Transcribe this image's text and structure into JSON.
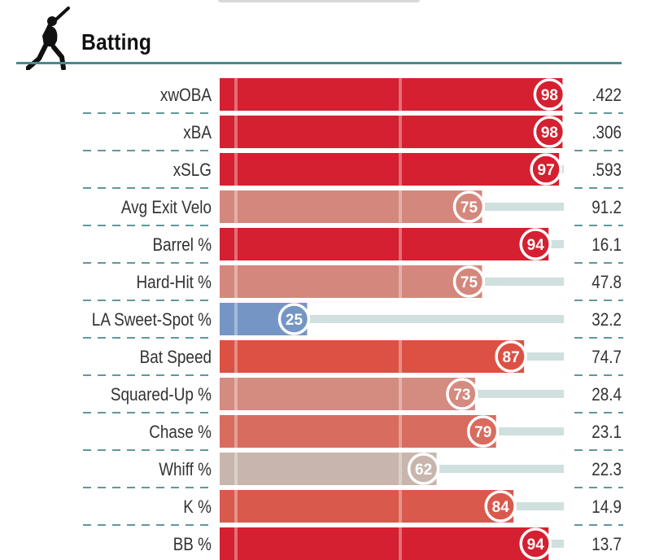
{
  "section": {
    "title": "Batting",
    "icon": "batter-silhouette-icon"
  },
  "chart_data": {
    "type": "bar",
    "orientation": "horizontal",
    "title": "Batting",
    "xlim": [
      0,
      100
    ],
    "rows": [
      {
        "metric": "xwOBA",
        "percentile": 98,
        "value": ".422",
        "color": "#d42030"
      },
      {
        "metric": "xBA",
        "percentile": 98,
        "value": ".306",
        "color": "#d42030"
      },
      {
        "metric": "xSLG",
        "percentile": 97,
        "value": ".593",
        "color": "#d42030"
      },
      {
        "metric": "Avg Exit Velo",
        "percentile": 75,
        "value": "91.2",
        "color": "#d4877c"
      },
      {
        "metric": "Barrel %",
        "percentile": 94,
        "value": "16.1",
        "color": "#d42030"
      },
      {
        "metric": "Hard-Hit %",
        "percentile": 75,
        "value": "47.8",
        "color": "#d4877c"
      },
      {
        "metric": "LA Sweet-Spot %",
        "percentile": 25,
        "value": "32.2",
        "color": "#7596c4"
      },
      {
        "metric": "Bat Speed",
        "percentile": 87,
        "value": "74.7",
        "color": "#dc5143"
      },
      {
        "metric": "Squared-Up %",
        "percentile": 73,
        "value": "28.4",
        "color": "#d48b80"
      },
      {
        "metric": "Chase %",
        "percentile": 79,
        "value": "23.1",
        "color": "#d76c5f"
      },
      {
        "metric": "Whiff %",
        "percentile": 62,
        "value": "22.3",
        "color": "#c8b6ae"
      },
      {
        "metric": "K %",
        "percentile": 84,
        "value": "14.9",
        "color": "#d9594c"
      },
      {
        "metric": "BB %",
        "percentile": 94,
        "value": "13.7",
        "color": "#d42030"
      }
    ],
    "track_color": "#cfe0de",
    "divider_color": "#4a8a8c"
  }
}
